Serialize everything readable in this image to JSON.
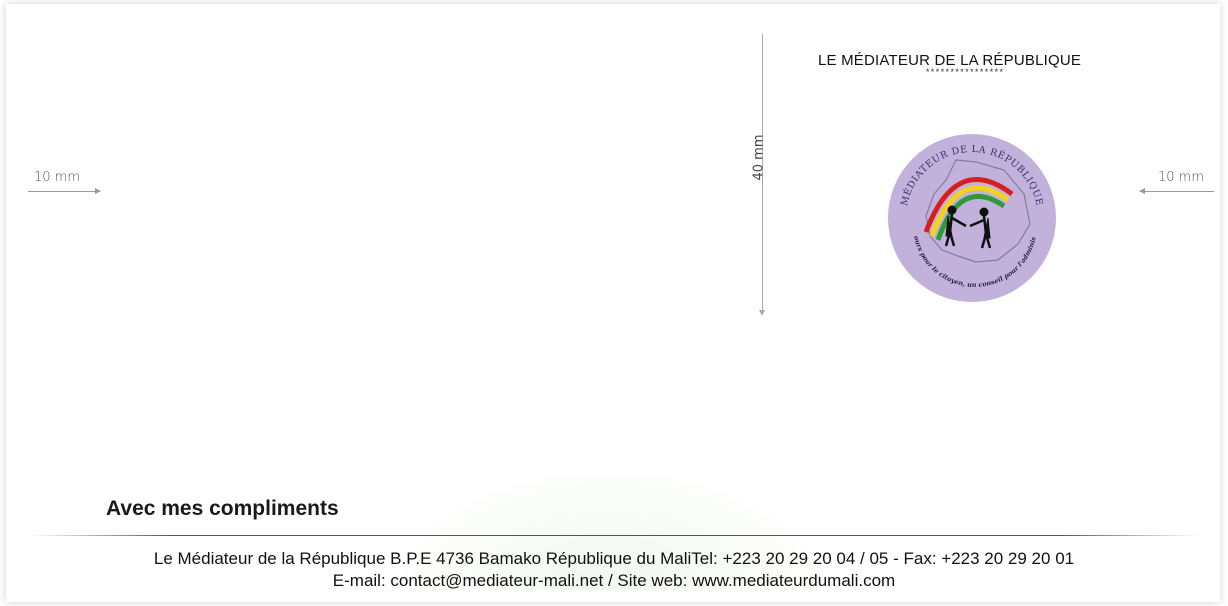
{
  "dimensions": {
    "left_margin": "10 mm",
    "right_margin": "10 mm",
    "height": "40 mm"
  },
  "header": {
    "title": "LE MÉDIATEUR DE LA RÉPUBLIQUE",
    "stars": "****************"
  },
  "seal": {
    "top_text": "MÉDIATEUR DE LA RÉPUBLIQUE",
    "bottom_text": "Un recours pour le citoyen, un conseil pour l'administration",
    "fill_color": "#c2b2db",
    "rainbow_colors": [
      "#d62020",
      "#f2d21a",
      "#2e9a3a"
    ]
  },
  "body": {
    "compliments": "Avec mes compliments"
  },
  "footer": {
    "line1": "Le Médiateur de la République B.P.E 4736 Bamako République du MaliTel: +223 20 29 20 04 / 05 - Fax: +223 20 29 20 01",
    "line2": "E-mail: contact@mediateur-mali.net / Site web: www.mediateurdumali.com"
  }
}
